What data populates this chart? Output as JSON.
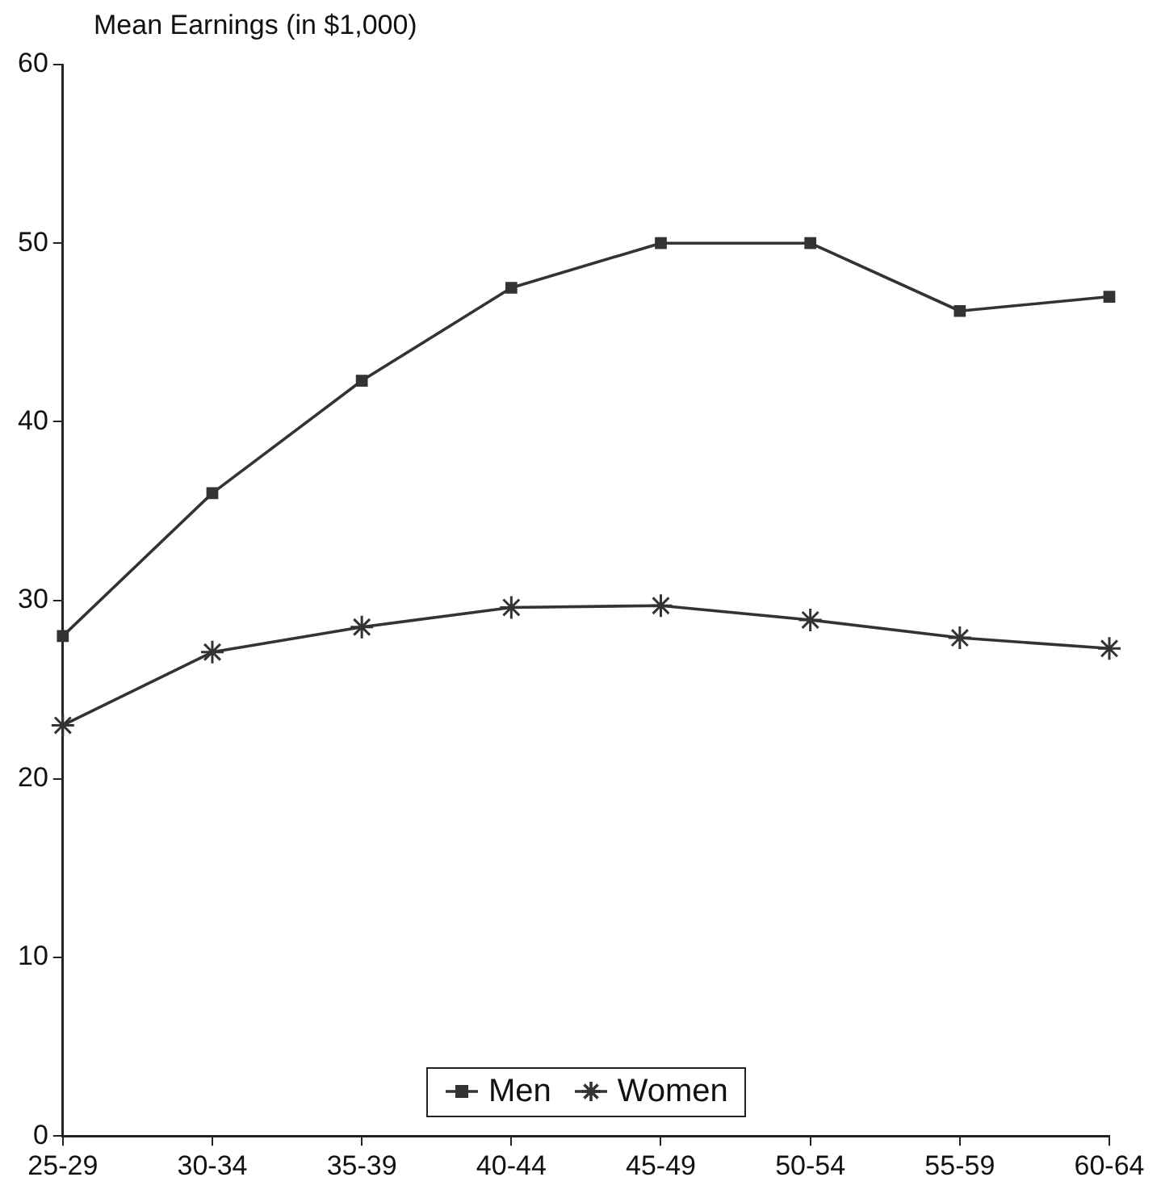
{
  "chart_data": {
    "type": "line",
    "ylabel": "Mean Earnings (in $1,000)",
    "categories": [
      "25-29",
      "30-34",
      "35-39",
      "40-44",
      "45-49",
      "50-54",
      "55-59",
      "60-64"
    ],
    "series": [
      {
        "name": "Men",
        "color": "#333333",
        "marker": "square",
        "values": [
          28,
          36,
          42.3,
          47.5,
          50,
          50,
          46.2,
          47
        ]
      },
      {
        "name": "Women",
        "color": "#333333",
        "marker": "cross",
        "values": [
          23,
          27.1,
          28.5,
          29.6,
          29.7,
          28.9,
          27.9,
          27.3
        ]
      }
    ],
    "ylim": [
      0,
      60
    ],
    "yticks": [
      0,
      10,
      20,
      30,
      40,
      50,
      60
    ],
    "grid": false,
    "legend": "bottom",
    "line_style": "solid"
  }
}
